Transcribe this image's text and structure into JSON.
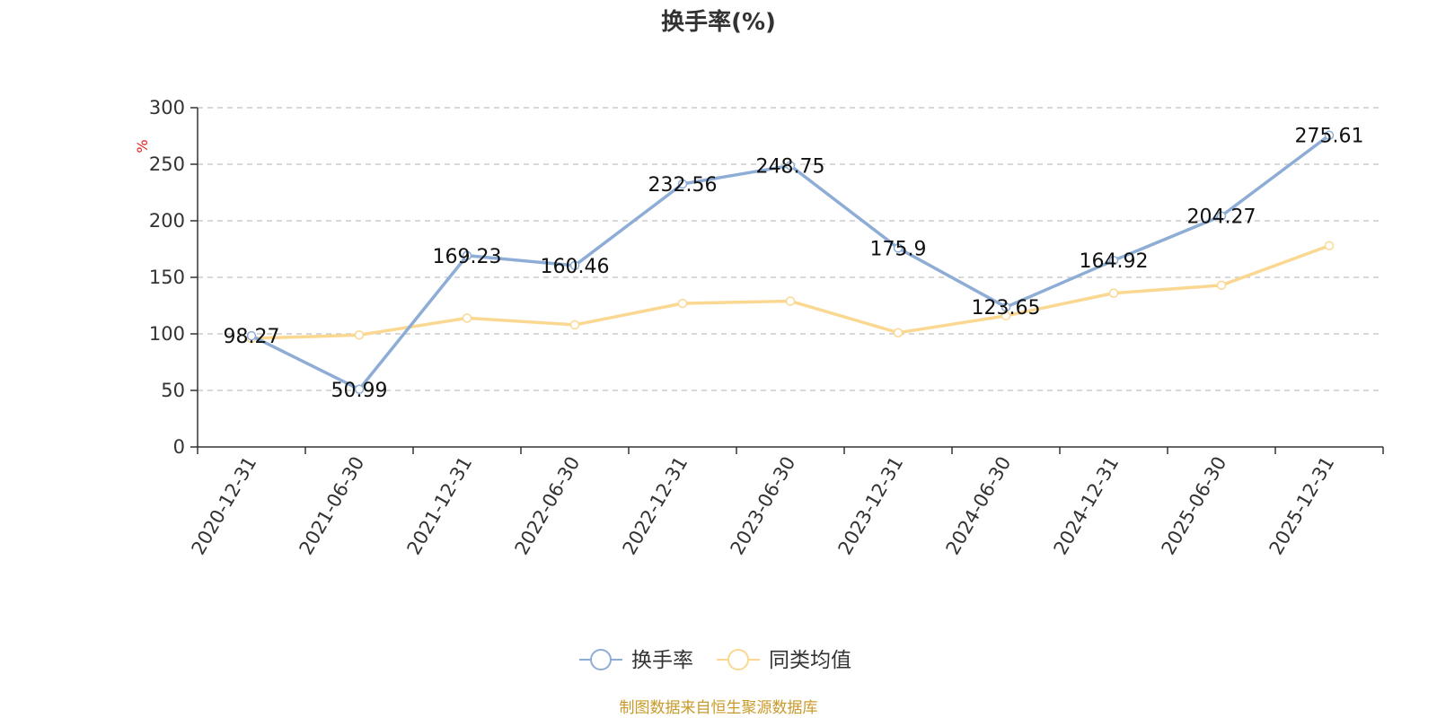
{
  "chart_data": {
    "type": "line",
    "title": "换手率(%)",
    "ylabel": "%",
    "ylim": [
      0,
      300
    ],
    "yticks": [
      "0",
      "50",
      "100",
      "150",
      "200",
      "250",
      "300"
    ],
    "grid": true,
    "legend_position": "bottom-center",
    "categories": [
      "2020-12-31",
      "2021-06-30",
      "2021-12-31",
      "2022-06-30",
      "2022-12-31",
      "2023-06-30",
      "2023-12-31",
      "2024-06-30",
      "2024-12-31",
      "2025-06-30",
      "2025-12-31"
    ],
    "series": [
      {
        "name": "换手率",
        "color": "#8eadd6",
        "values": [
          98.27,
          50.99,
          169.23,
          160.46,
          232.56,
          248.75,
          175.9,
          123.65,
          164.92,
          204.27,
          275.61
        ],
        "labels": [
          "98.27",
          "50.99",
          "169.23",
          "160.46",
          "232.56",
          "248.75",
          "175.9",
          "123.65",
          "164.92",
          "204.27",
          "275.61"
        ],
        "show_labels": true
      },
      {
        "name": "同类均值",
        "color": "#fad892",
        "values": [
          96,
          99,
          114,
          108,
          127,
          129,
          101,
          116,
          136,
          143,
          178
        ],
        "show_labels": false
      }
    ]
  },
  "source": {
    "text": "制图数据来自恒生聚源数据库",
    "color": "#c89a2a"
  }
}
